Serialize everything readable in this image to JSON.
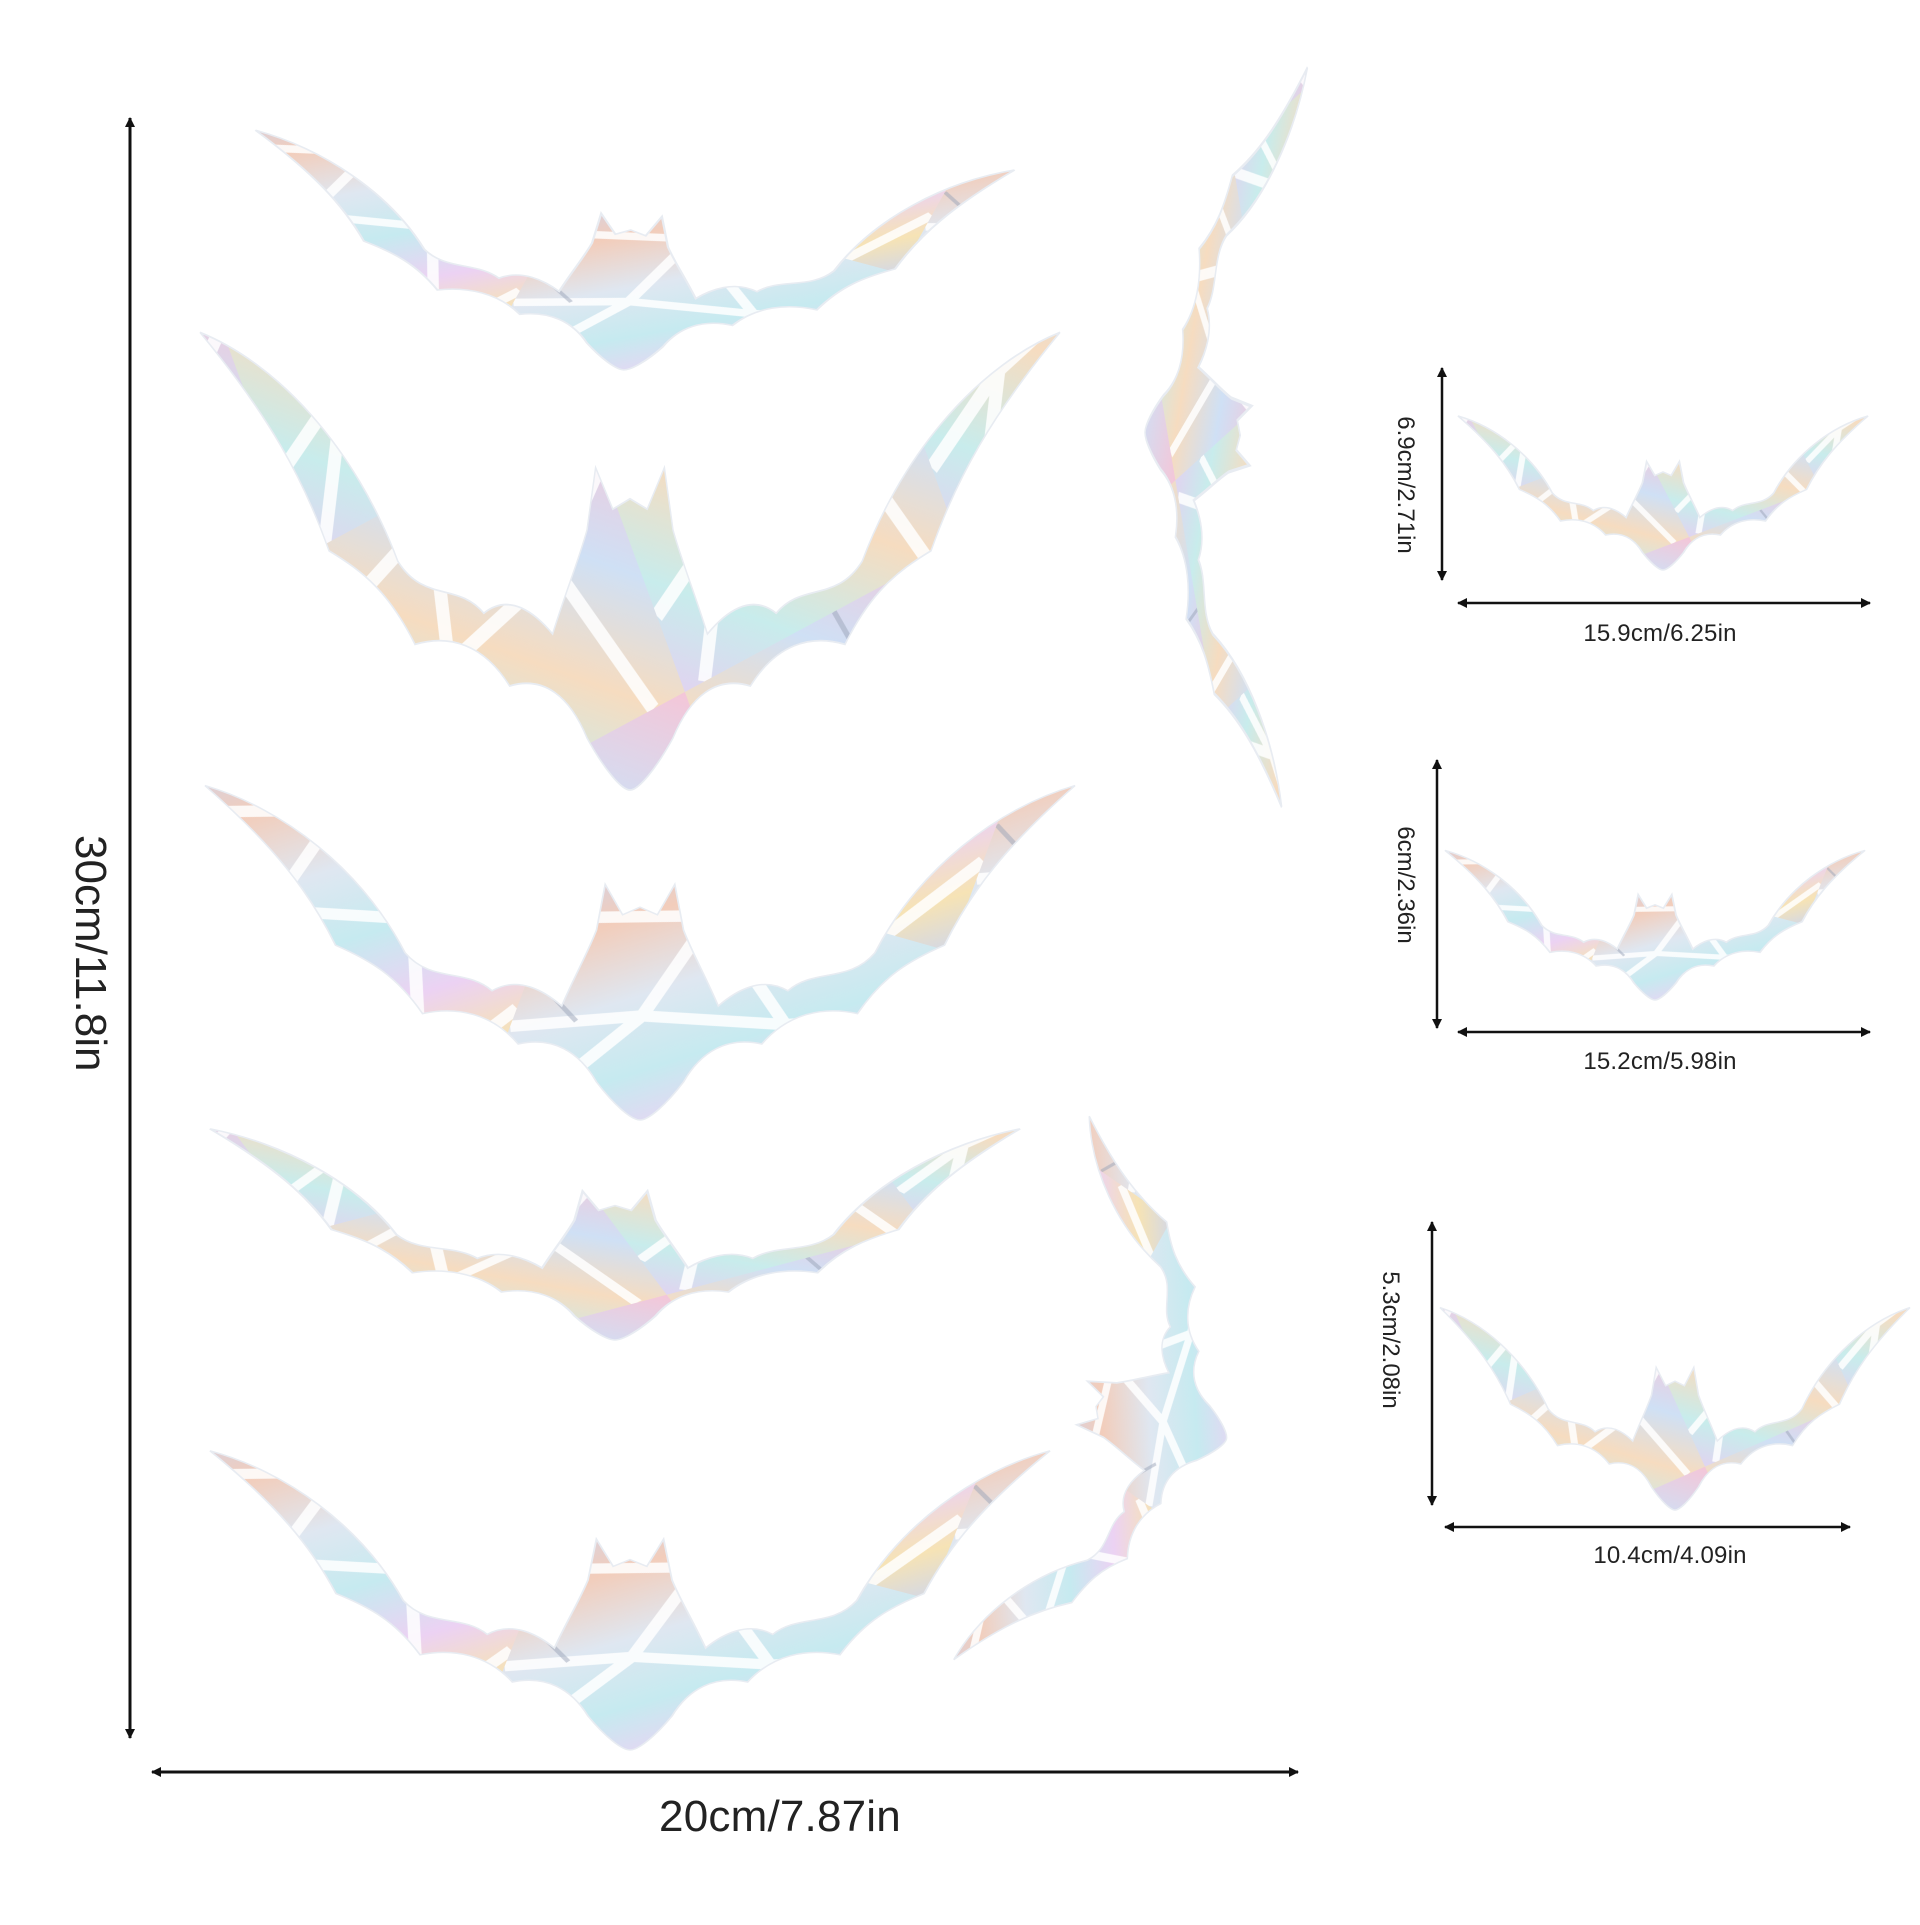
{
  "main_sheet": {
    "height_label": "30cm/11.8in",
    "width_label": "20cm/7.87in"
  },
  "samples": [
    {
      "height_label": "6.9cm/2.71in",
      "width_label": "15.9cm/6.25in"
    },
    {
      "height_label": "6cm/2.36in",
      "width_label": "15.2cm/5.98in"
    },
    {
      "height_label": "5.3cm/2.08in",
      "width_label": "10.4cm/4.09in"
    }
  ],
  "colors": {
    "arrow": "#111111",
    "iridescent": [
      "#b9c8f0",
      "#f3c9b8",
      "#e7d2f2",
      "#c6ecef",
      "#f7e4b3",
      "#d9dde6",
      "#f0b9d2"
    ],
    "crack": "#ffffff"
  }
}
